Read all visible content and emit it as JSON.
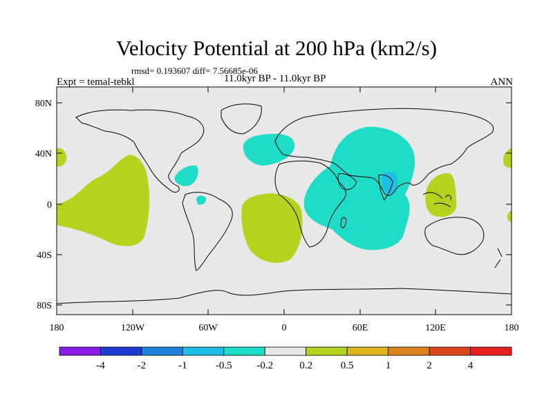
{
  "title": "Velocity Potential at 200 hPa (km2/s)",
  "stats": "rmsd= 0.193607 diff= 7.56685e-06",
  "experiment": "Expt = temal-tebkl",
  "subtitle": "11.0kyr BP - 11.0kyr BP",
  "season": "ANN",
  "lat_labels": [
    "80N",
    "40N",
    "0",
    "40S",
    "80S"
  ],
  "lon_labels": [
    "180",
    "120W",
    "60W",
    "0",
    "60E",
    "120E",
    "180"
  ],
  "colorbar": {
    "labels": [
      "-4",
      "-2",
      "-1",
      "-0.5",
      "-0.2",
      "0.2",
      "0.5",
      "1",
      "2",
      "4"
    ],
    "colors": [
      "#8a1ee6",
      "#1e3cd2",
      "#1e82dc",
      "#1ebee6",
      "#1edcc8",
      "#e6e6e6",
      "#b4d21e",
      "#dcb41e",
      "#dc821e",
      "#dc461e",
      "#e61e1e"
    ]
  },
  "palette": {
    "ocean_background": "#e8e8e8",
    "positive_0.2_0.5": "#b4d21e",
    "negative_0.2_0.5": "#1edcc8",
    "negative_0.5_1": "#1ebee6"
  }
}
